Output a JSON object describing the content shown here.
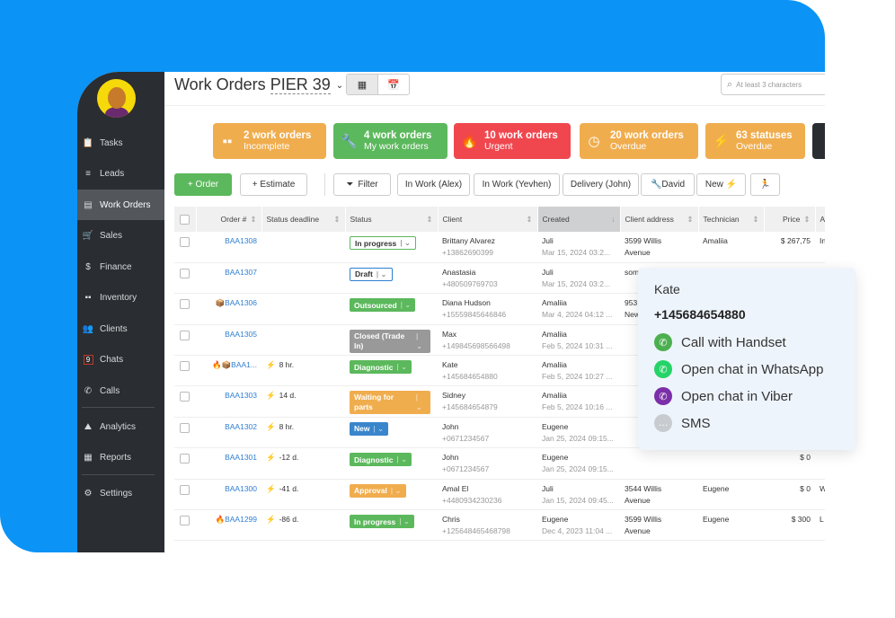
{
  "sidebar": {
    "items": [
      {
        "label": "Tasks",
        "icon": "clipboard-icon"
      },
      {
        "label": "Leads",
        "icon": "funnel-icon"
      },
      {
        "label": "Work Orders",
        "icon": "work-order-icon",
        "active": true
      },
      {
        "label": "Sales",
        "icon": "cart-icon"
      },
      {
        "label": "Finance",
        "icon": "dollar-icon"
      },
      {
        "label": "Inventory",
        "icon": "boxes-icon"
      },
      {
        "label": "Clients",
        "icon": "users-icon"
      },
      {
        "label": "Chats",
        "icon": "chat-badge-icon",
        "badge": "9"
      },
      {
        "label": "Calls",
        "icon": "phone-icon"
      },
      {
        "label": "Analytics",
        "icon": "chart-icon"
      },
      {
        "label": "Reports",
        "icon": "table-icon"
      },
      {
        "label": "Settings",
        "icon": "gear-icon"
      }
    ]
  },
  "header": {
    "title": "Work Orders",
    "location": "PIER 39",
    "search_placeholder": "At least 3 characters"
  },
  "cards": [
    {
      "title": "2 work orders",
      "sub": "Incomplete",
      "color": "#f0ad4e",
      "icon": "boxes-icon"
    },
    {
      "title": "4 work orders",
      "sub": "My work orders",
      "color": "#5cb85c",
      "icon": "wrench-icon"
    },
    {
      "title": "10 work orders",
      "sub": "Urgent",
      "color": "#f0474f",
      "icon": "fire-icon"
    },
    {
      "title": "20 work orders",
      "sub": "Overdue",
      "color": "#f0ad4e",
      "icon": "clock-icon"
    },
    {
      "title": "63 statuses",
      "sub": "Overdue",
      "color": "#f0ad4e",
      "icon": "bolt-icon"
    }
  ],
  "toolbar": {
    "order": "+ Order",
    "estimate": "+ Estimate",
    "filter": "Filter",
    "presets": [
      "In Work (Alex)",
      "In Work (Yevhen)",
      "Delivery (John)",
      "🔧David",
      "New ⚡",
      "🏃"
    ]
  },
  "columns": [
    "Order #",
    "Status deadline",
    "Status",
    "Client",
    "Created",
    "Client address",
    "Technician",
    "Price",
    "A"
  ],
  "rows": [
    {
      "order": "BAA1308",
      "flags": "",
      "deadline": "",
      "bolt": "",
      "status": "In progress",
      "status_color": "#5cb85c",
      "outline": true,
      "client": "Brittany Alvarez",
      "phone": "+13862690399",
      "created_by": "Juli",
      "created": "Mar 15, 2024 03:2...",
      "address": "3599 Willis",
      "address2": "Avenue",
      "tech": "Amaliia",
      "price": "$ 267,75",
      "extra": "In"
    },
    {
      "order": "BAA1307",
      "flags": "",
      "deadline": "",
      "bolt": "",
      "status": "Draft",
      "status_color": "#2f7fd1",
      "outline": true,
      "client": "Anastasia",
      "phone": "+480509769703",
      "created_by": "Juli",
      "created": "Mar 15, 2024 03:2...",
      "address": "som",
      "address2": "",
      "tech": "",
      "price": "",
      "extra": ""
    },
    {
      "order": "BAA1306",
      "flags": "📦",
      "deadline": "",
      "bolt": "",
      "status": "Outsourced",
      "status_color": "#5cb85c",
      "client": "Diana Hudson",
      "phone": "+15559845646846",
      "created_by": "Amaliia",
      "created": "Mar 4, 2024 04:12 ...",
      "address": "953",
      "address2": "New",
      "tech": "",
      "price": "",
      "extra": ""
    },
    {
      "order": "BAA1305",
      "flags": "",
      "deadline": "",
      "bolt": "",
      "status": "Closed (Trade In)",
      "status_color": "#999999",
      "two": true,
      "client": "Max",
      "phone": "+149845698566498",
      "created_by": "Amaliia",
      "created": "Feb 5, 2024 10:31 ...",
      "address": "",
      "address2": "",
      "tech": "",
      "price": "",
      "extra": ""
    },
    {
      "order": "BAA1...",
      "flags": "🔥📦",
      "deadline": "8 hr.",
      "bolt": "grey",
      "status": "Diagnostic",
      "status_color": "#5cb85c",
      "client": "Kate",
      "phone": "+145684654880",
      "created_by": "Amaliia",
      "created": "Feb 5, 2024 10:27 ...",
      "address": "",
      "address2": "",
      "tech": "",
      "price": "",
      "extra": ""
    },
    {
      "order": "BAA1303",
      "flags": "",
      "deadline": "14 d.",
      "bolt": "grey",
      "status": "Waiting for parts",
      "status_color": "#f0ad4e",
      "two": true,
      "client": "Sidney",
      "phone": "+145684654879",
      "created_by": "Amaliia",
      "created": "Feb 5, 2024 10:16 ...",
      "address": "",
      "address2": "",
      "tech": "",
      "price": "",
      "extra": ""
    },
    {
      "order": "BAA1302",
      "flags": "",
      "deadline": "8 hr.",
      "bolt": "grey",
      "status": "New",
      "status_color": "#3a86cc",
      "client": "John",
      "phone": "+0671234567",
      "created_by": "Eugene",
      "created": "Jan 25, 2024 09:15...",
      "address": "",
      "address2": "",
      "tech": "",
      "price": "",
      "extra": ""
    },
    {
      "order": "BAA1301",
      "flags": "",
      "deadline": "-12 d.",
      "bolt": "orange",
      "status": "Diagnostic",
      "status_color": "#5cb85c",
      "client": "John",
      "phone": "+0671234567",
      "created_by": "Eugene",
      "created": "Jan 25, 2024 09:15...",
      "address": "",
      "address2": "",
      "tech": "",
      "price": "$ 0",
      "extra": ""
    },
    {
      "order": "BAA1300",
      "flags": "",
      "deadline": "-41 d.",
      "bolt": "orange",
      "status": "Approval",
      "status_color": "#f0ad4e",
      "client": "Amal El",
      "phone": "+4480934230236",
      "created_by": "Juli",
      "created": "Jan 15, 2024 09:45...",
      "address": "3544 Willis",
      "address2": "Avenue",
      "tech": "Eugene",
      "price": "$ 0",
      "extra": "W"
    },
    {
      "order": "BAA1299",
      "flags": "🔥",
      "deadline": "-86 d.",
      "bolt": "orange",
      "status": "In progress",
      "status_color": "#5cb85c",
      "client": "Chris",
      "phone": "+125648465468798",
      "created_by": "Eugene",
      "created": "Dec 4, 2023 11:04 ...",
      "address": "3599 Willis",
      "address2": "Avenue",
      "tech": "Eugene",
      "price": "$ 300",
      "extra": "L"
    }
  ],
  "popup": {
    "name": "Kate",
    "phone": "+145684654880",
    "actions": [
      {
        "label": "Call with Handset",
        "icon": "phone-icon",
        "color": "#4caf50"
      },
      {
        "label": "Open chat in WhatsApp",
        "icon": "whatsapp-icon",
        "color": "#25d366"
      },
      {
        "label": "Open chat in Viber",
        "icon": "viber-icon",
        "color": "#7b2fa8"
      },
      {
        "label": "SMS",
        "icon": "sms-icon",
        "color": "#c8ccd0"
      }
    ]
  }
}
